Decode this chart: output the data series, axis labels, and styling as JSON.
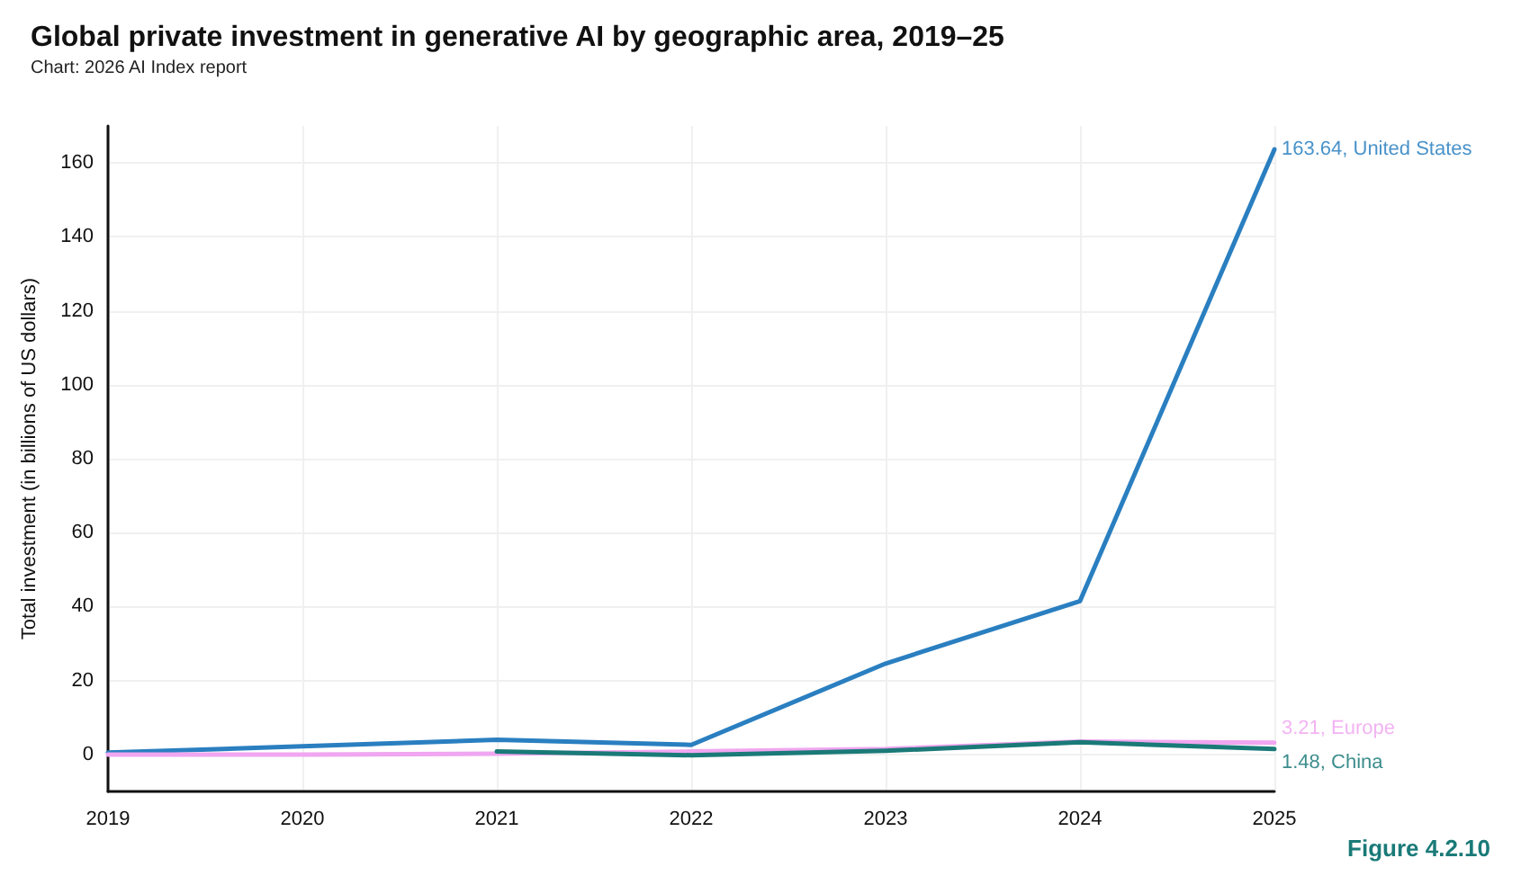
{
  "chart_data": {
    "type": "line",
    "title": "Global private investment in generative AI by geographic area, 2019–25",
    "subtitle": "Chart: 2026 AI Index report",
    "ylabel": "Total investment (in billions of US dollars)",
    "categories": [
      "2019",
      "2020",
      "2021",
      "2022",
      "2023",
      "2024",
      "2025"
    ],
    "series": [
      {
        "name": "United States",
        "color": "#2a7fc0",
        "values": [
          0.5,
          2.2,
          4,
          2.6,
          24.6,
          41.5,
          163.64
        ],
        "value_labels": [
          null,
          null,
          null,
          null,
          null,
          null,
          "163.64,"
        ]
      },
      {
        "name": "Europe",
        "color": "#f0a6f0",
        "values": [
          0,
          0,
          0.2,
          0.8,
          1.5,
          3.5,
          3.21
        ],
        "value_labels": [
          null,
          null,
          null,
          null,
          null,
          null,
          "3.21,"
        ]
      },
      {
        "name": "China",
        "color": "#1a7a78",
        "values": [
          null,
          null,
          0.8,
          -0.2,
          1,
          3.3,
          1.48
        ],
        "value_labels": [
          null,
          null,
          null,
          null,
          null,
          null,
          "1.48,"
        ]
      }
    ],
    "ylim": [
      -10,
      170
    ],
    "yticks": [
      0,
      20,
      40,
      60,
      80,
      100,
      120,
      140,
      160
    ],
    "grid": true,
    "legend": false,
    "marker": "none",
    "line_style": "solid",
    "annotations": [
      "Figure 4.2.10"
    ]
  }
}
